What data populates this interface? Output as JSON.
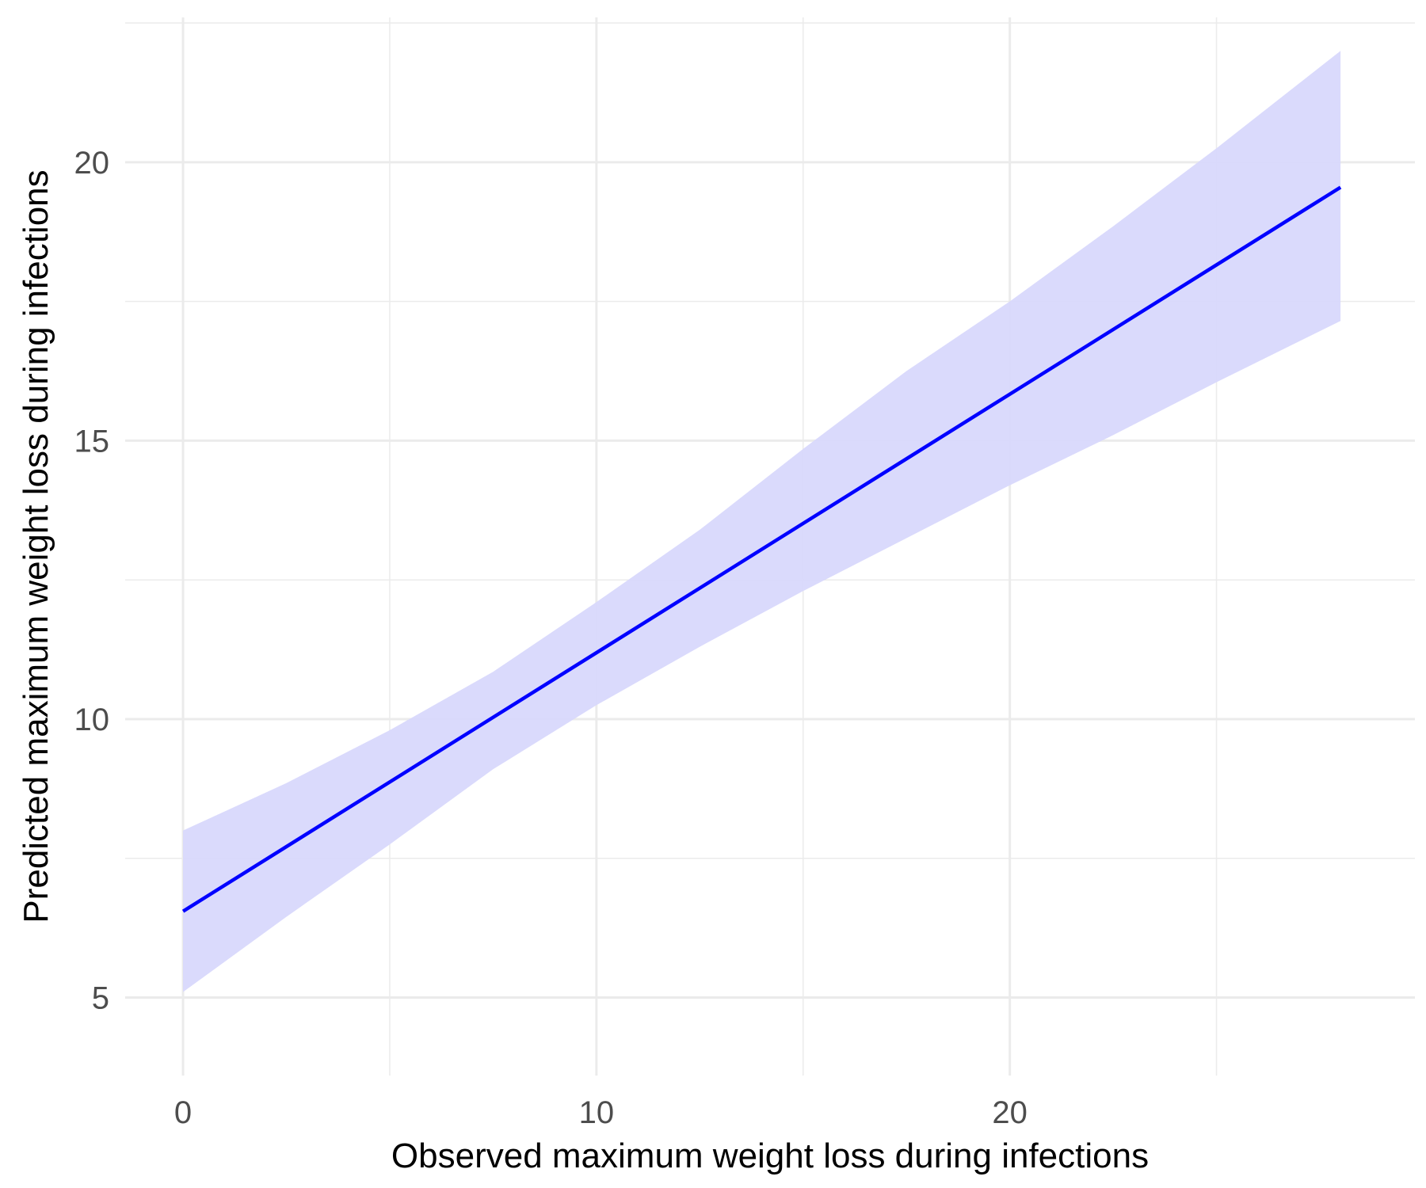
{
  "chart_data": {
    "type": "line",
    "title": "",
    "xlabel": "Observed maximum weight loss during infections",
    "ylabel": "Predicted maximum weight loss during infections",
    "xlim": [
      -1.4,
      29.8
    ],
    "ylim": [
      3.6,
      22.6
    ],
    "x_ticks": [
      0,
      10,
      20
    ],
    "x_tick_labels": [
      "0",
      "10",
      "20"
    ],
    "x_minor_ticks": [
      5,
      15,
      25
    ],
    "y_ticks": [
      5,
      10,
      15,
      20
    ],
    "y_tick_labels": [
      "5",
      "10",
      "15",
      "20"
    ],
    "y_minor_ticks": [
      7.5,
      12.5,
      17.5,
      22.5
    ],
    "grid": true,
    "legend": "none",
    "series": [
      {
        "x": [
          0,
          28
        ],
        "y": [
          6.55,
          19.55
        ],
        "color": "#0000ff"
      }
    ],
    "ribbon": {
      "color": "#d8d8fc",
      "x": [
        0,
        2.5,
        5,
        7.5,
        10,
        12.5,
        15,
        17.5,
        20,
        22.5,
        25,
        28
      ],
      "lower": [
        5.1,
        6.45,
        7.75,
        9.1,
        10.25,
        11.3,
        12.3,
        13.25,
        14.2,
        15.1,
        16.05,
        17.15
      ],
      "upper": [
        8.0,
        8.85,
        9.8,
        10.85,
        12.1,
        13.4,
        14.85,
        16.25,
        17.5,
        18.85,
        20.25,
        22.0
      ]
    }
  }
}
